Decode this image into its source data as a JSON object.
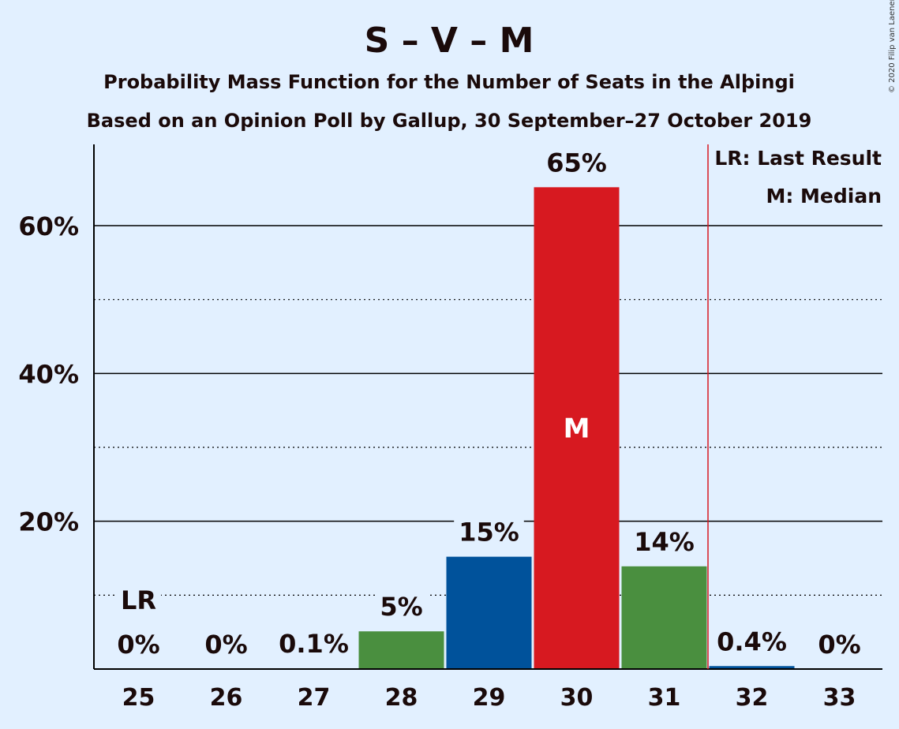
{
  "title": "S – V – M",
  "subtitle1": "Probability Mass Function for the Number of Seats in the Alþingi",
  "subtitle2": "Based on an Opinion Poll by Gallup, 30 September–27 October 2019",
  "copyright": "© 2020 Filip van Laenen",
  "legend": {
    "last_result": "LR: Last Result",
    "median": "M: Median"
  },
  "colors": {
    "background": "#e2f0ff",
    "green": "#4a8f3f",
    "blue": "#00529b",
    "red": "#d71920",
    "last_result_line": "#d71920"
  },
  "chart_data": {
    "type": "bar",
    "categories": [
      "25",
      "26",
      "27",
      "28",
      "29",
      "30",
      "31",
      "32",
      "33"
    ],
    "values": [
      0,
      0,
      0.1,
      5.1,
      15.2,
      65.2,
      13.9,
      0.4,
      0
    ],
    "labels": [
      "0%",
      "0%",
      "0.1%",
      "5%",
      "15%",
      "65%",
      "14%",
      "0.4%",
      "0%"
    ],
    "bar_colors": [
      "#4a8f3f",
      "#4a8f3f",
      "#4a8f3f",
      "#4a8f3f",
      "#00529b",
      "#d71920",
      "#4a8f3f",
      "#00529b",
      "#4a8f3f"
    ],
    "y_ticks": [
      20,
      40,
      60
    ],
    "y_tick_labels": [
      "20%",
      "40%",
      "60%"
    ],
    "y_minor_ticks": [
      10,
      30,
      50
    ],
    "ylim": [
      0,
      71
    ],
    "last_result_category": "25",
    "last_result_marker": "LR",
    "median_category": "30",
    "median_marker": "M",
    "majority_line_after": "31"
  }
}
